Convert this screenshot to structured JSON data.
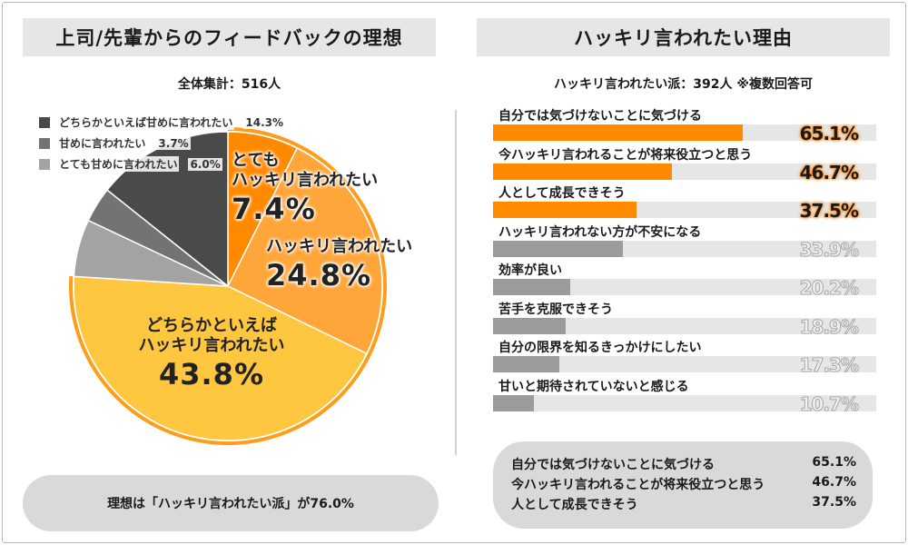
{
  "left_panel": {
    "title": "上司/先輩からのフィードバックの理想",
    "subtitle": "全体集計：516人",
    "summary": "理想は「ハッキリ言われたい派」が76.0%"
  },
  "right_panel": {
    "title": "ハッキリ言われたい理由",
    "subtitle": "ハッキリ言われたい派：392人 ※複数回答可",
    "summary": [
      {
        "label": "自分では気づけないことに気づける",
        "value": "65.1%"
      },
      {
        "label": "今ハッキリ言われることが将来役立つと思う",
        "value": "46.7%"
      },
      {
        "label": "人として成長できそう",
        "value": "37.5%"
      }
    ]
  },
  "chart_data": [
    {
      "type": "pie",
      "title": "上司/先輩からのフィードバックの理想",
      "start": "12 o'clock, clockwise",
      "slices": [
        {
          "label": "とてもハッキリ言われたい",
          "label_lines": [
            "とても",
            "ハッキリ言われたい"
          ],
          "value": 7.4,
          "display": "7.4%",
          "color": "#ff8a00",
          "in_legend": false
        },
        {
          "label": "ハッキリ言われたい",
          "label_lines": [
            "ハッキリ言われたい"
          ],
          "value": 24.8,
          "display": "24.8%",
          "color": "#ffa63a",
          "in_legend": false
        },
        {
          "label": "どちらかといえばハッキリ言われたい",
          "label_lines": [
            "どちらかといえば",
            "ハッキリ言われたい"
          ],
          "value": 43.8,
          "display": "43.8%",
          "color": "#ffc640",
          "in_legend": false
        },
        {
          "label": "とても甘めに言われたい",
          "value": 6.0,
          "display": "6.0%",
          "color": "#a3a3a3",
          "in_legend": true
        },
        {
          "label": "甘めに言われたい",
          "value": 3.7,
          "display": "3.7%",
          "color": "#737373",
          "in_legend": true
        },
        {
          "label": "どちらかといえば甘めに言われたい",
          "value": 14.3,
          "display": "14.3%",
          "color": "#4a4a4a",
          "in_legend": true
        }
      ],
      "legend_order": [
        5,
        4,
        3
      ],
      "colors": {
        "outline": "#ff9d1a"
      }
    },
    {
      "type": "bar",
      "orientation": "horizontal",
      "title": "ハッキリ言われたい理由",
      "xlim": [
        0,
        100
      ],
      "categories": [
        "自分では気づけないことに気づける",
        "今ハッキリ言われることが将来役立つと思う",
        "人として成長できそう",
        "ハッキリ言われない方が不安になる",
        "効率が良い",
        "苦手を克服できそう",
        "自分の限界を知るきっかけにしたい",
        "甘いと期待されていないと感じる"
      ],
      "values": [
        65.1,
        46.7,
        37.5,
        33.9,
        20.2,
        18.9,
        17.3,
        10.7
      ],
      "display": [
        "65.1%",
        "46.7%",
        "37.5%",
        "33.9%",
        "20.2%",
        "18.9%",
        "17.3%",
        "10.7%"
      ],
      "highlight_count": 3,
      "colors": {
        "highlight": "#ff8a00",
        "normal": "#9b9b9b",
        "track": "#e6e6e6"
      }
    }
  ]
}
